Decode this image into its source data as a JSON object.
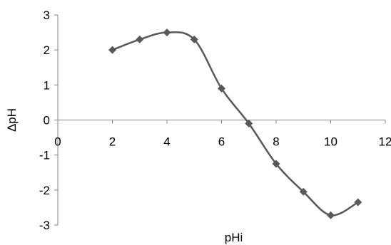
{
  "chart_data": {
    "type": "line",
    "title": "",
    "xlabel": "pHi",
    "ylabel": "ΔpH",
    "xlim": [
      0,
      12
    ],
    "ylim": [
      -3,
      3
    ],
    "x_ticks": [
      0,
      2,
      4,
      6,
      8,
      10,
      12
    ],
    "y_ticks": [
      3,
      2,
      1,
      0,
      -1,
      -2,
      -3
    ],
    "grid": false,
    "legend": "none",
    "smooth": true,
    "marker": "diamond",
    "line_color": "#595959",
    "marker_color": "#595959",
    "series": [
      {
        "x": [
          2,
          3,
          4,
          5,
          6,
          7,
          8,
          9,
          10,
          11
        ],
        "y": [
          2.0,
          2.3,
          2.5,
          2.3,
          0.9,
          -0.1,
          -1.25,
          -2.05,
          -2.72,
          -2.35
        ]
      }
    ]
  }
}
